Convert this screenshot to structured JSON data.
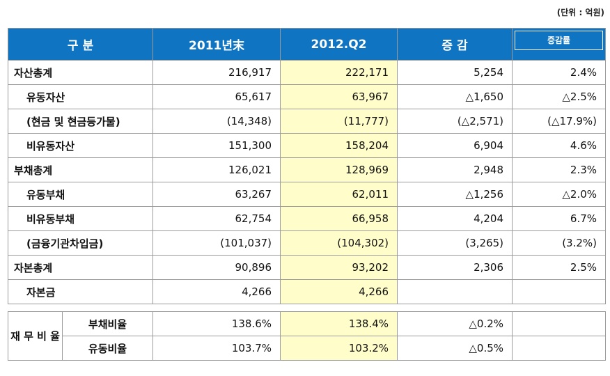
{
  "unit_note": "(단위 : 억원)",
  "header": {
    "category": "구  분",
    "col_2011": "2011년末",
    "col_2012": "2012.Q2",
    "col_change": "증 감",
    "col_rate": "증감률"
  },
  "rows": [
    {
      "label": "자산총계",
      "v2011": "216,917",
      "v2012": "222,171",
      "change": "5,254",
      "rate": "2.4%"
    },
    {
      "label": "유동자산",
      "v2011": "65,617",
      "v2012": "63,967",
      "change": "△1,650",
      "rate": "△2.5%"
    },
    {
      "label": "(현금 및 현금등가물)",
      "v2011": "(14,348)",
      "v2012": "(11,777)",
      "change": "(△2,571)",
      "rate": "(△17.9%)"
    },
    {
      "label": "비유동자산",
      "v2011": "151,300",
      "v2012": "158,204",
      "change": "6,904",
      "rate": "4.6%"
    },
    {
      "label": "부채총계",
      "v2011": "126,021",
      "v2012": "128,969",
      "change": "2,948",
      "rate": "2.3%"
    },
    {
      "label": "유동부채",
      "v2011": "63,267",
      "v2012": "62,011",
      "change": "△1,256",
      "rate": "△2.0%"
    },
    {
      "label": "비유동부채",
      "v2011": "62,754",
      "v2012": "66,958",
      "change": "4,204",
      "rate": "6.7%"
    },
    {
      "label": "(금융기관차입금)",
      "v2011": "(101,037)",
      "v2012": "(104,302)",
      "change": "(3,265)",
      "rate": "(3.2%)"
    },
    {
      "label": "자본총계",
      "v2011": "90,896",
      "v2012": "93,202",
      "change": "2,306",
      "rate": "2.5%"
    },
    {
      "label": "자본금",
      "v2011": "4,266",
      "v2012": "4,266",
      "change": "",
      "rate": ""
    }
  ],
  "ratios": {
    "group_label": "재 무 비 율",
    "items": [
      {
        "label": "부채비율",
        "v2011": "138.6%",
        "v2012": "138.4%",
        "change": "△0.2%",
        "rate": ""
      },
      {
        "label": "유동비율",
        "v2011": "103.7%",
        "v2012": "103.2%",
        "change": "△0.5%",
        "rate": ""
      }
    ]
  }
}
